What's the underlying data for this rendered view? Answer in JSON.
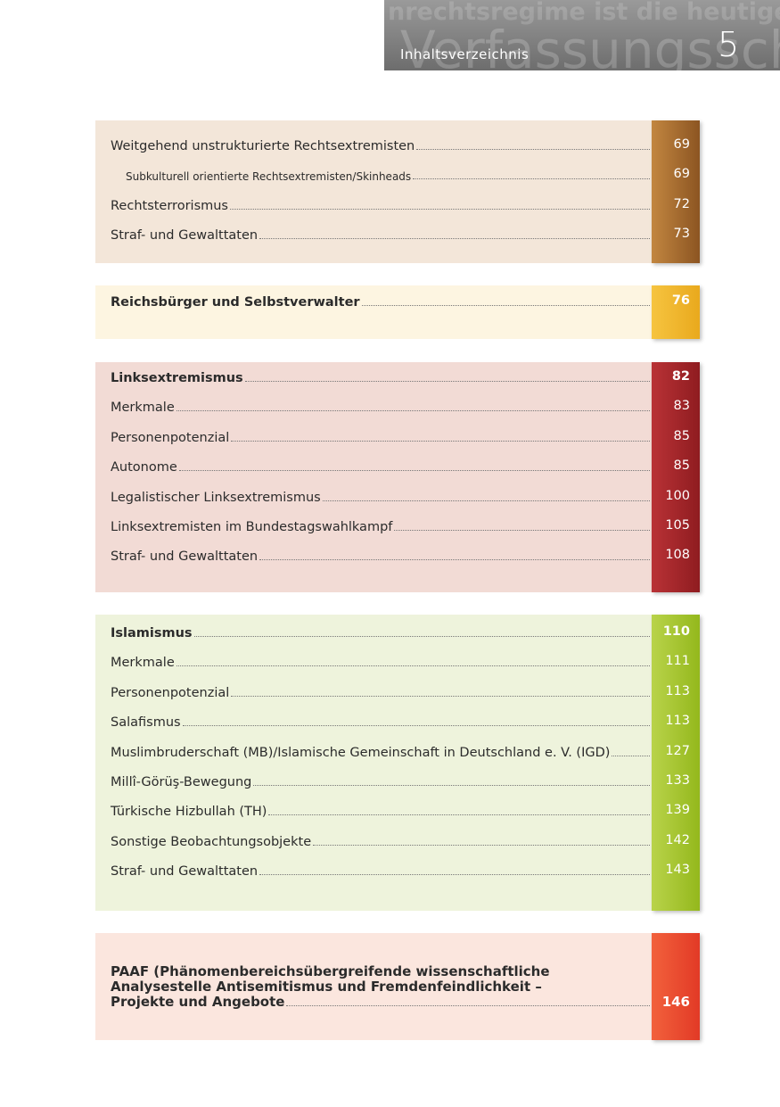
{
  "header": {
    "title": "Inhaltsverzeichnis",
    "page_number": 5,
    "background_text": [
      "nrechtsregime ist die heutige Demo",
      "Verfassungsschutz"
    ]
  },
  "sections": [
    {
      "entries": [
        {
          "title": "Weitgehend unstrukturierte Rechtsextremisten",
          "page": 69
        },
        {
          "title": "Subkulturell orientierte Rechtsextremisten/Skinheads",
          "page": 69
        },
        {
          "title": "Rechtsterrorismus",
          "page": 72
        },
        {
          "title": "Straf- und Gewalttaten",
          "page": 73
        }
      ]
    },
    {
      "entries": [
        {
          "title": "Reichsbürger und Selbstverwalter",
          "page": 76
        }
      ]
    },
    {
      "entries": [
        {
          "title": "Linksextremismus",
          "page": 82
        },
        {
          "title": "Merkmale",
          "page": 83
        },
        {
          "title": "Personenpotenzial",
          "page": 85
        },
        {
          "title": "Autonome",
          "page": 85
        },
        {
          "title": "Legalistischer Linksextremismus",
          "page": 100
        },
        {
          "title": "Linksextremisten im Bundestagswahlkampf",
          "page": 105
        },
        {
          "title": "Straf- und Gewalttaten",
          "page": 108
        }
      ]
    },
    {
      "entries": [
        {
          "title": "Islamismus",
          "page": 110
        },
        {
          "title": "Merkmale",
          "page": 111
        },
        {
          "title": "Personenpotenzial",
          "page": 113
        },
        {
          "title": "Salafismus",
          "page": 113
        },
        {
          "title": "Muslimbruderschaft (MB)/Islamische Gemeinschaft in Deutschland e. V. (IGD)",
          "page": 127
        },
        {
          "title": "Millî-Görüş-Bewegung",
          "page": 133
        },
        {
          "title": "Türkische Hizbullah (TH)",
          "page": 139
        },
        {
          "title": "Sonstige Beobachtungsobjekte",
          "page": 142
        },
        {
          "title": "Straf- und Gewalttaten",
          "page": 143
        }
      ]
    },
    {
      "entries": [
        {
          "lines": [
            "PAAF (Phänomenbereichsübergreifende wissenschaftliche",
            "Analysestelle Antisemitismus und Fremdenfeindlichkeit –",
            "Projekte und Angebote"
          ],
          "page": 146
        }
      ]
    }
  ]
}
